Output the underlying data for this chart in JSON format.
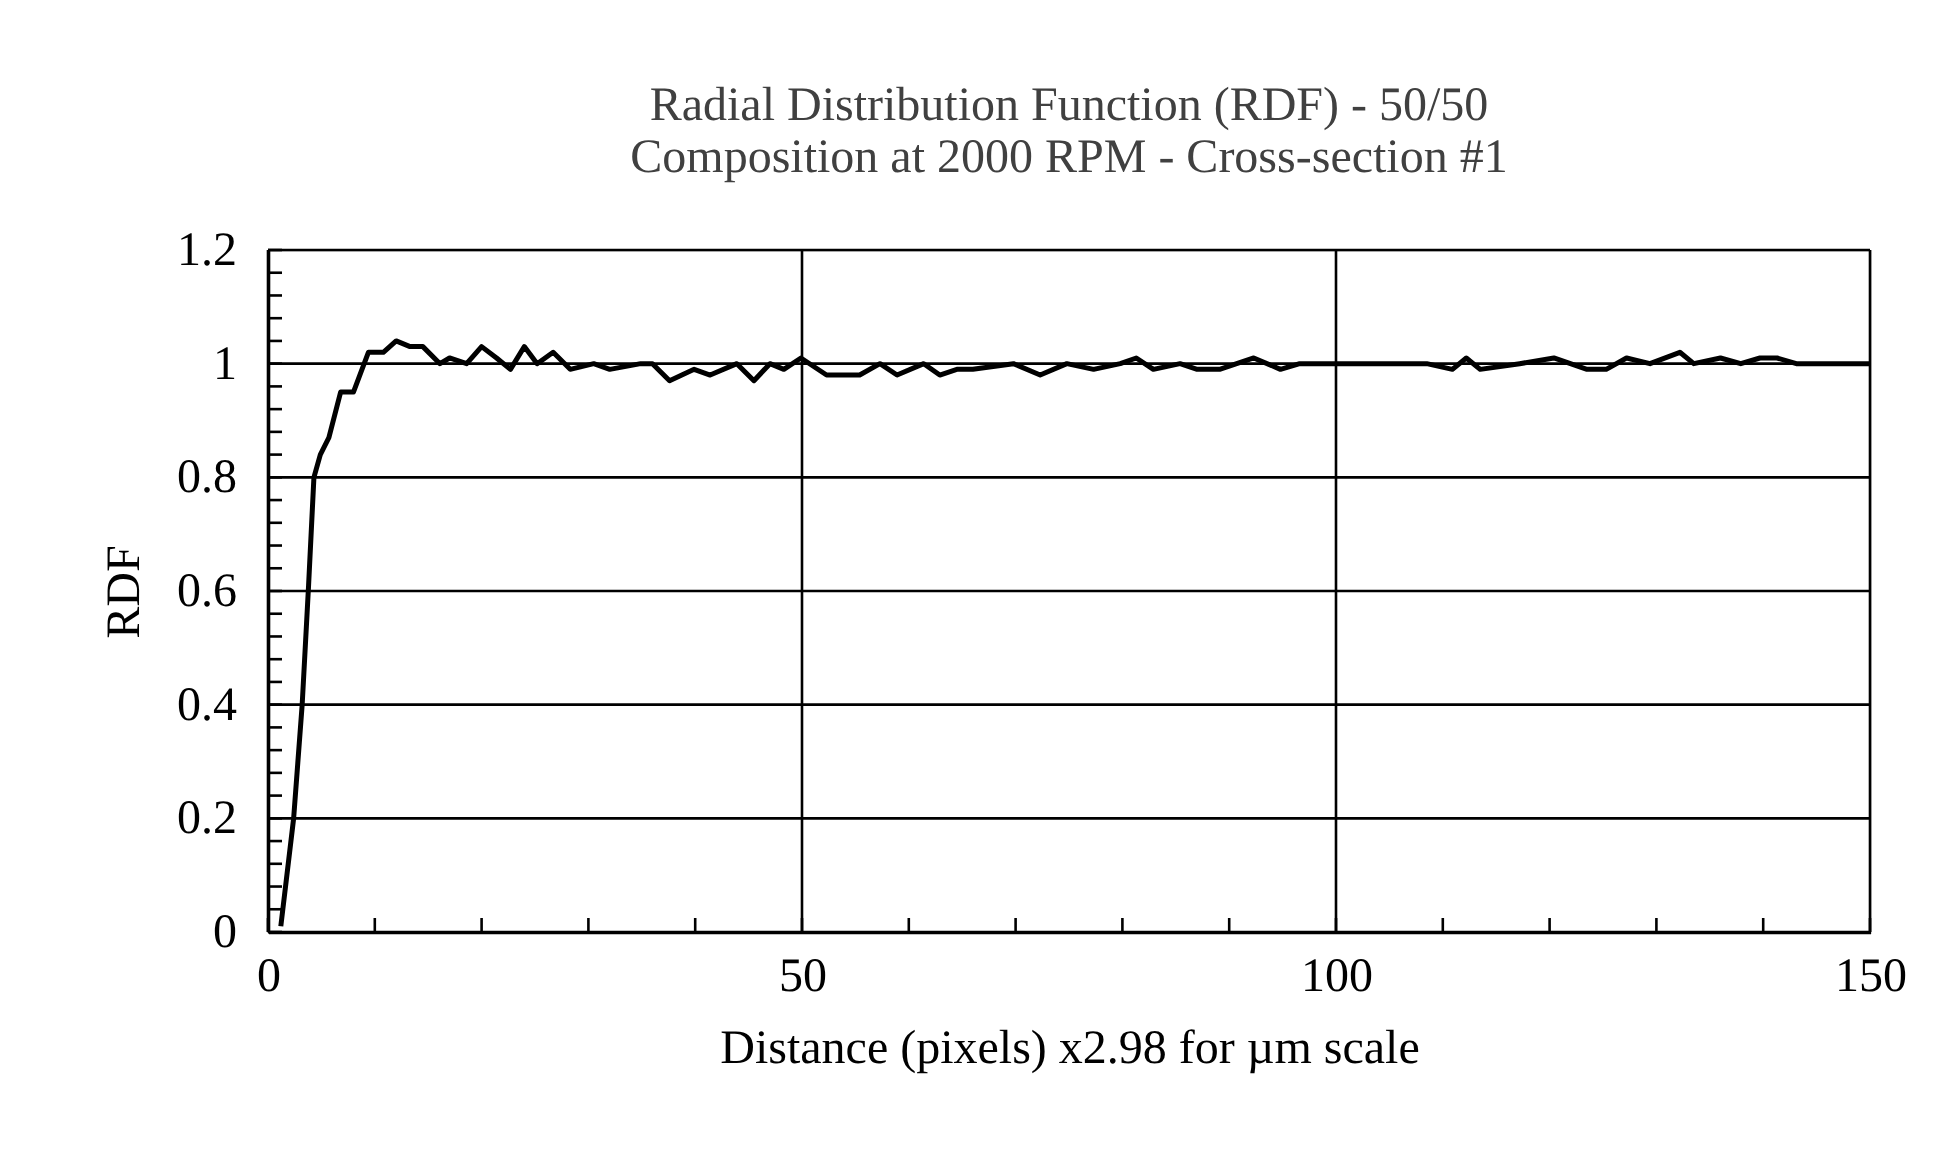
{
  "chart_data": {
    "type": "line",
    "title": [
      "Radial Distribution Function (RDF) - 50/50",
      "Composition at 2000 RPM - Cross-section #1"
    ],
    "xlabel": "Distance (pixels) x2.98 for µm scale",
    "ylabel": "RDF",
    "series": [
      {
        "color": "#000000",
        "x": [
          1.2,
          2.4,
          3.2,
          3.8,
          4.3,
          4.9,
          5.7,
          6.8,
          8.0,
          9.4,
          10.8,
          12.0,
          13.3,
          14.5,
          16.1,
          17.0,
          18.6,
          20.0,
          21.4,
          22.7,
          24.0,
          25.2,
          26.7,
          28.3,
          30.5,
          32.0,
          34.9,
          36.0,
          37.6,
          39.9,
          41.4,
          43.9,
          45.5,
          47.0,
          48.3,
          49.9,
          52.3,
          55.4,
          57.3,
          58.9,
          61.4,
          62.9,
          64.5,
          66.0,
          69.8,
          72.3,
          74.8,
          77.3,
          79.8,
          81.3,
          82.9,
          85.4,
          87.0,
          89.1,
          92.3,
          94.8,
          96.6,
          100.0,
          102.9,
          104.7,
          108.5,
          110.9,
          112.2,
          113.5,
          117.2,
          120.4,
          123.5,
          125.3,
          127.2,
          129.4,
          132.2,
          133.5,
          136.0,
          137.9,
          139.7,
          141.3,
          143.1,
          145.0,
          146.6,
          150.0
        ],
        "values": [
          0.01,
          0.2,
          0.4,
          0.61,
          0.8,
          0.84,
          0.87,
          0.95,
          0.95,
          1.02,
          1.02,
          1.04,
          1.03,
          1.03,
          1.0,
          1.01,
          1.0,
          1.03,
          1.01,
          0.99,
          1.03,
          1.0,
          1.02,
          0.99,
          1.0,
          0.99,
          1.0,
          1.0,
          0.97,
          0.99,
          0.98,
          1.0,
          0.97,
          1.0,
          0.99,
          1.01,
          0.98,
          0.98,
          1.0,
          0.98,
          1.0,
          0.98,
          0.99,
          0.99,
          1.0,
          0.98,
          1.0,
          0.99,
          1.0,
          1.01,
          0.99,
          1.0,
          0.99,
          0.99,
          1.01,
          0.99,
          1.0,
          1.0,
          1.0,
          1.0,
          1.0,
          0.99,
          1.01,
          0.99,
          1.0,
          1.01,
          0.99,
          0.99,
          1.01,
          1.0,
          1.02,
          1.0,
          1.01,
          1.0,
          1.01,
          1.01,
          1.0,
          1.0,
          1.0,
          1.0
        ]
      }
    ],
    "xlim": [
      0,
      150
    ],
    "xticks": [
      0,
      {
        "value": 10,
        "label": null
      },
      {
        "value": 20,
        "label": null
      },
      {
        "value": 30,
        "label": null
      },
      {
        "value": 40,
        "label": null
      },
      50,
      {
        "value": 60,
        "label": null
      },
      {
        "value": 70,
        "label": null
      },
      {
        "value": 80,
        "label": null
      },
      {
        "value": 90,
        "label": null
      },
      100,
      {
        "value": 110,
        "label": null
      },
      {
        "value": 120,
        "label": null
      },
      {
        "value": 130,
        "label": null
      },
      {
        "value": 140,
        "label": null
      },
      150
    ],
    "ylim": [
      0,
      1.2
    ],
    "yticks": [
      0,
      {
        "value": 0.04,
        "label": null
      },
      {
        "value": 0.08,
        "label": null
      },
      {
        "value": 0.12,
        "label": null
      },
      {
        "value": 0.16,
        "label": null
      },
      0.2,
      {
        "value": 0.24,
        "label": null
      },
      {
        "value": 0.28,
        "label": null
      },
      {
        "value": 0.32,
        "label": null
      },
      {
        "value": 0.36,
        "label": null
      },
      0.4,
      {
        "value": 0.44,
        "label": null
      },
      {
        "value": 0.48,
        "label": null
      },
      {
        "value": 0.52,
        "label": null
      },
      {
        "value": 0.56,
        "label": null
      },
      0.6,
      {
        "value": 0.64,
        "label": null
      },
      {
        "value": 0.68,
        "label": null
      },
      {
        "value": 0.72,
        "label": null
      },
      {
        "value": 0.76,
        "label": null
      },
      0.8,
      {
        "value": 0.84,
        "label": null
      },
      {
        "value": 0.88,
        "label": null
      },
      {
        "value": 0.92,
        "label": null
      },
      {
        "value": 0.96,
        "label": null
      },
      1,
      {
        "value": 1.04,
        "label": null
      },
      {
        "value": 1.08,
        "label": null
      },
      {
        "value": 1.12,
        "label": null
      },
      {
        "value": 1.16,
        "label": null
      },
      1.2
    ],
    "grid": true,
    "marker": "none",
    "line_style": "solid"
  }
}
